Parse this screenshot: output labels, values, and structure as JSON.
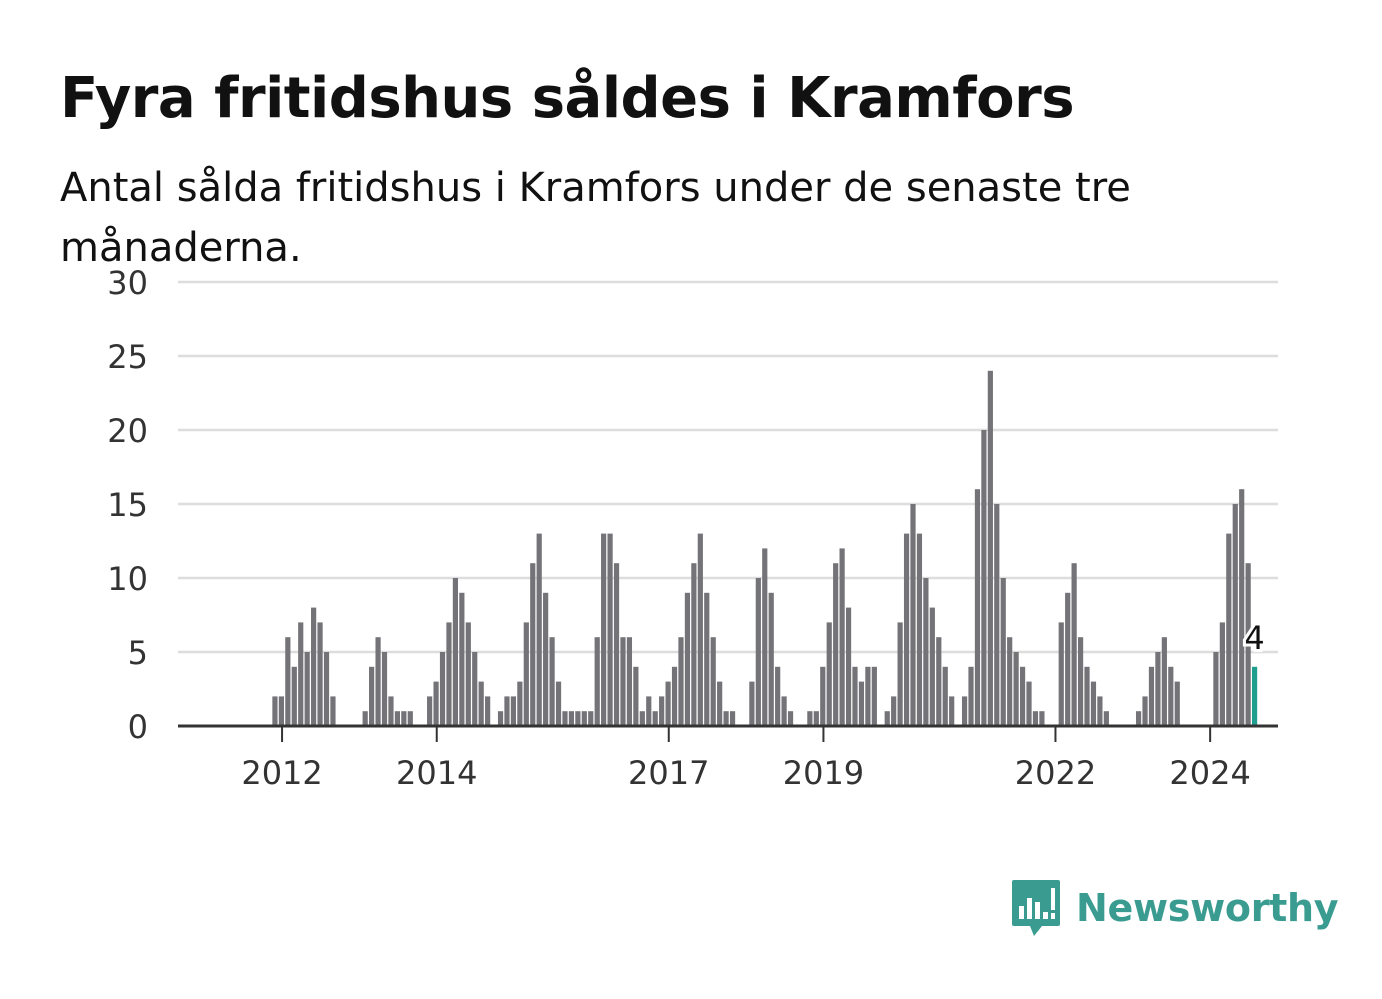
{
  "brand": {
    "name": "Newsworthy",
    "color": "#3a9c91"
  },
  "colors": {
    "bar": "#747378",
    "highlight": "#1f9d8f",
    "grid": "#dddddd",
    "axis": "#333333"
  },
  "chart_data": {
    "type": "bar",
    "title": "Fyra fritidshus såldes i Kramfors",
    "subtitle": "Antal sålda fritidshus i Kramfors under de senaste tre månaderna.",
    "xlabel": "",
    "ylabel": "",
    "ylim": [
      0,
      30
    ],
    "yticks": [
      0,
      5,
      10,
      15,
      20,
      25,
      30
    ],
    "xticks": [
      {
        "label": "2012",
        "index": 8
      },
      {
        "label": "2014",
        "index": 32
      },
      {
        "label": "2017",
        "index": 68
      },
      {
        "label": "2019",
        "index": 92
      },
      {
        "label": "2022",
        "index": 128
      },
      {
        "label": "2024",
        "index": 152
      }
    ],
    "grid": true,
    "highlight": {
      "index": 162,
      "label": "4"
    },
    "values": [
      0,
      0,
      0,
      0,
      0,
      0,
      0,
      0,
      0,
      0,
      2,
      2,
      6,
      4,
      7,
      5,
      8,
      7,
      5,
      2,
      0,
      0,
      0,
      0,
      1,
      4,
      6,
      5,
      2,
      1,
      1,
      1,
      0,
      0,
      2,
      3,
      5,
      7,
      10,
      9,
      7,
      5,
      3,
      2,
      0,
      1,
      2,
      2,
      3,
      7,
      11,
      13,
      9,
      6,
      3,
      1,
      1,
      1,
      1,
      1,
      6,
      13,
      13,
      11,
      6,
      6,
      4,
      1,
      2,
      1,
      2,
      3,
      4,
      6,
      9,
      11,
      13,
      9,
      6,
      3,
      1,
      1,
      0,
      0,
      3,
      10,
      12,
      9,
      4,
      2,
      1,
      0,
      0,
      1,
      1,
      4,
      7,
      11,
      12,
      8,
      4,
      3,
      4,
      4,
      0,
      1,
      2,
      7,
      13,
      15,
      13,
      10,
      8,
      6,
      4,
      2,
      0,
      2,
      4,
      16,
      20,
      24,
      15,
      10,
      6,
      5,
      4,
      3,
      1,
      1,
      0,
      0,
      7,
      9,
      11,
      6,
      4,
      3,
      2,
      1,
      0,
      0,
      0,
      0,
      1,
      2,
      4,
      5,
      6,
      4,
      3,
      0,
      0,
      0,
      0,
      0,
      5,
      7,
      13,
      15,
      16,
      11,
      4
    ]
  }
}
